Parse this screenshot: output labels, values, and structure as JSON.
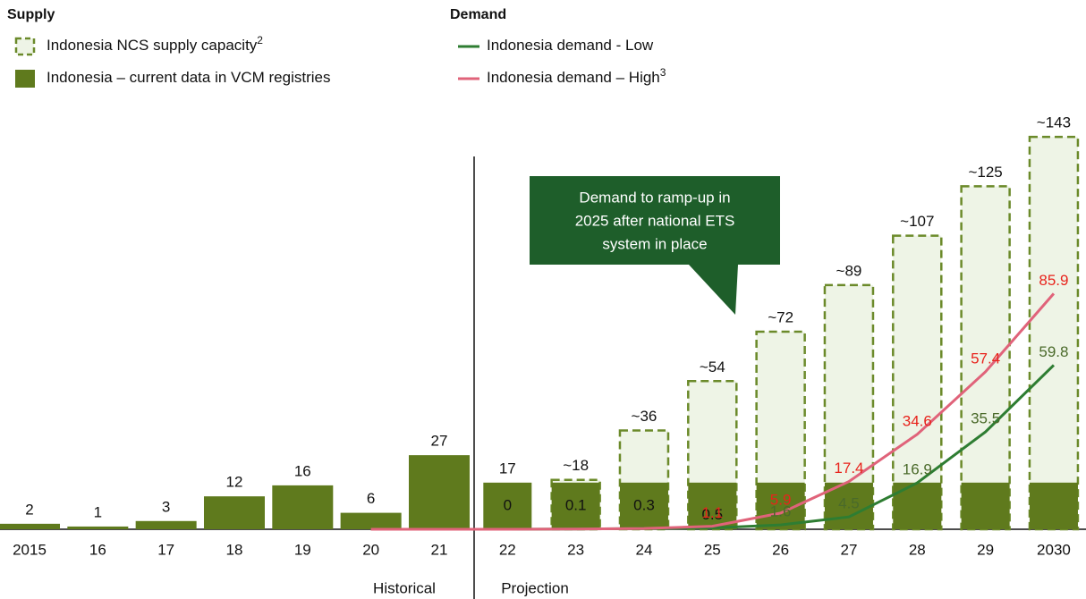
{
  "chart_data": {
    "type": "bar",
    "supply_heading": "Supply",
    "demand_heading": "Demand",
    "categories": [
      "2015",
      "16",
      "17",
      "18",
      "19",
      "20",
      "21",
      "22",
      "23",
      "24",
      "25",
      "26",
      "27",
      "28",
      "29",
      "2030"
    ],
    "ylim": [
      0,
      145
    ],
    "series": [
      {
        "name": "Indonesia NCS supply capacity",
        "superscript": "2",
        "kind": "capacity",
        "color": "#6b8a2a",
        "fill": "#eef4e6",
        "values": [
          null,
          null,
          null,
          null,
          null,
          null,
          null,
          null,
          18,
          36,
          54,
          72,
          89,
          107,
          125,
          143
        ],
        "value_labels": [
          null,
          null,
          null,
          null,
          null,
          null,
          null,
          null,
          "~18",
          "~36",
          "~54",
          "~72",
          "~89",
          "~107",
          "~125",
          "~143"
        ]
      },
      {
        "name": "Indonesia – current data in VCM registries",
        "kind": "solid",
        "color": "#5f7a1d",
        "values": [
          2,
          1,
          3,
          12,
          16,
          6,
          27,
          17,
          17,
          17,
          17,
          17,
          17,
          17,
          17,
          17
        ],
        "value_labels": [
          "2",
          "1",
          "3",
          "12",
          "16",
          "6",
          "27",
          "17",
          null,
          null,
          null,
          null,
          null,
          null,
          null,
          null
        ]
      },
      {
        "name": "Indonesia demand - Low",
        "kind": "line",
        "color": "#2e7d32",
        "label_color": "#4a6a2a",
        "values": [
          null,
          null,
          null,
          null,
          null,
          0,
          0,
          0,
          0.1,
          0.3,
          0.5,
          1.6,
          4.5,
          16.9,
          35.5,
          59.8
        ],
        "value_labels": [
          null,
          null,
          null,
          null,
          null,
          null,
          null,
          "0",
          "0.1",
          "0.3",
          "0.5",
          "1.6",
          "4.5",
          "16.9",
          "35.5",
          "59.8"
        ]
      },
      {
        "name": "Indonesia demand – High",
        "superscript": "3",
        "kind": "line",
        "color": "#e0637a",
        "label_color": "#e8231c",
        "values": [
          null,
          null,
          null,
          null,
          null,
          0,
          0,
          0,
          0.1,
          0.3,
          1.1,
          5.9,
          17.4,
          34.6,
          57.4,
          85.9
        ],
        "value_labels": [
          null,
          null,
          null,
          null,
          null,
          null,
          null,
          null,
          null,
          null,
          "1.1",
          "5.9",
          "17.4",
          "34.6",
          "57.4",
          "85.9"
        ]
      }
    ],
    "callout": [
      "Demand to ramp-up in",
      "2025 after national ETS",
      "system in place"
    ],
    "period_labels": [
      "Historical",
      "Projection"
    ]
  }
}
